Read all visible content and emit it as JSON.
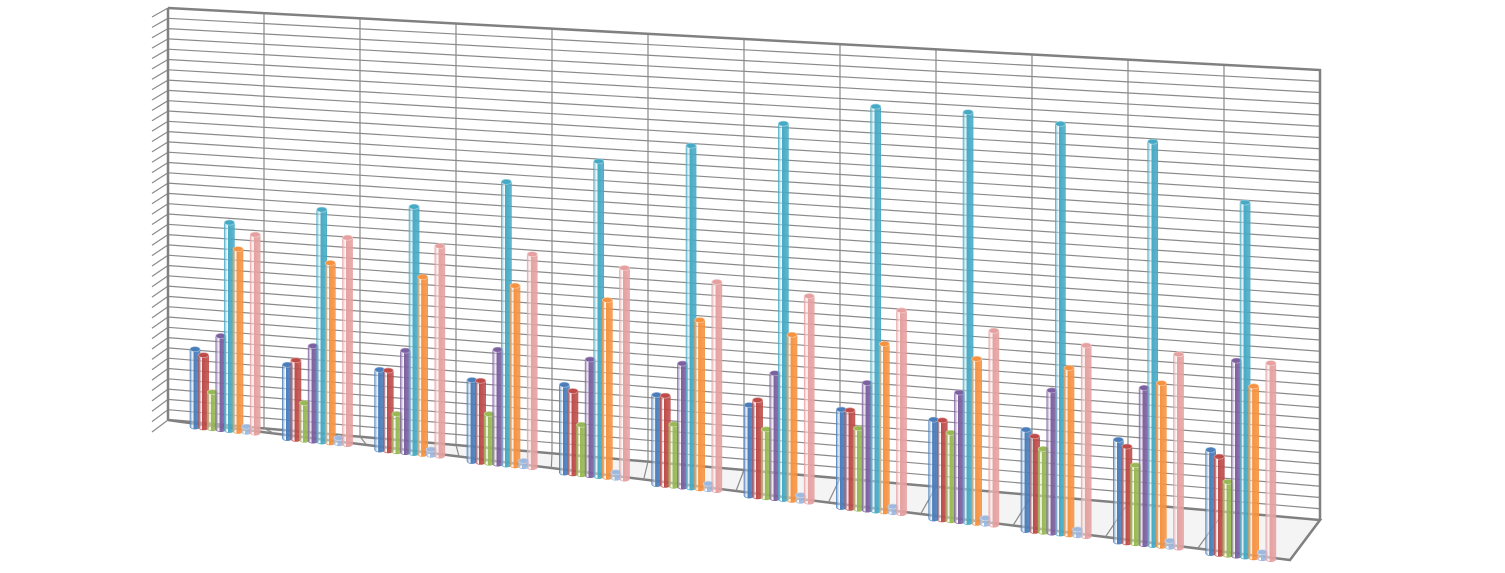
{
  "chart_data": {
    "type": "bar3d",
    "categories": [
      null,
      null,
      null,
      null,
      null,
      null,
      null,
      null,
      null,
      null,
      null,
      null
    ],
    "ylim": [
      0,
      40
    ],
    "yticks": [
      0,
      1,
      2,
      3,
      4,
      5,
      6,
      7,
      8,
      9,
      10,
      11,
      12,
      13,
      14,
      15,
      16,
      17,
      18,
      19,
      20,
      21,
      22,
      23,
      24,
      25,
      26,
      27,
      28,
      29,
      30,
      31,
      32,
      33,
      34,
      35,
      36,
      37,
      38,
      39,
      40
    ],
    "grid": true,
    "series": [
      {
        "color": "#4a7ebb",
        "values": [
          7.5,
          7,
          7.5,
          7.5,
          8,
          8,
          8,
          8.5,
          8.5,
          8.5,
          8.5,
          8.5
        ]
      },
      {
        "color": "#be4b48",
        "values": [
          7,
          7.5,
          7.5,
          7.5,
          7.5,
          8,
          8.5,
          8.5,
          8.5,
          8,
          8,
          8
        ]
      },
      {
        "color": "#98b954",
        "values": [
          3.5,
          3.5,
          3.5,
          4.5,
          4.5,
          5.5,
          6,
          7,
          7.5,
          7,
          6.5,
          6
        ]
      },
      {
        "color": "#7d60a0",
        "values": [
          9,
          9,
          9.5,
          10.5,
          10.5,
          11,
          11,
          11,
          11,
          12,
          13,
          16
        ]
      },
      {
        "color": "#46aac5",
        "values": [
          20,
          22,
          23,
          26,
          28.5,
          30.5,
          33,
          35,
          35,
          34.5,
          33.5,
          29
        ]
      },
      {
        "color": "#f69240",
        "values": [
          17.5,
          17,
          16.5,
          16.5,
          16,
          15,
          14.5,
          14.5,
          14,
          14,
          13.5,
          14
        ]
      },
      {
        "color": "#9db9e0",
        "values": [
          0.5,
          0.5,
          0.5,
          0.5,
          0.5,
          0.5,
          0.5,
          0.5,
          0.5,
          0.5,
          0.5,
          0.5
        ]
      },
      {
        "color": "#e6a0a0",
        "values": [
          19,
          19.5,
          19.5,
          19.5,
          19,
          18.5,
          18,
          17.5,
          16.5,
          16,
          16,
          16
        ]
      }
    ]
  }
}
